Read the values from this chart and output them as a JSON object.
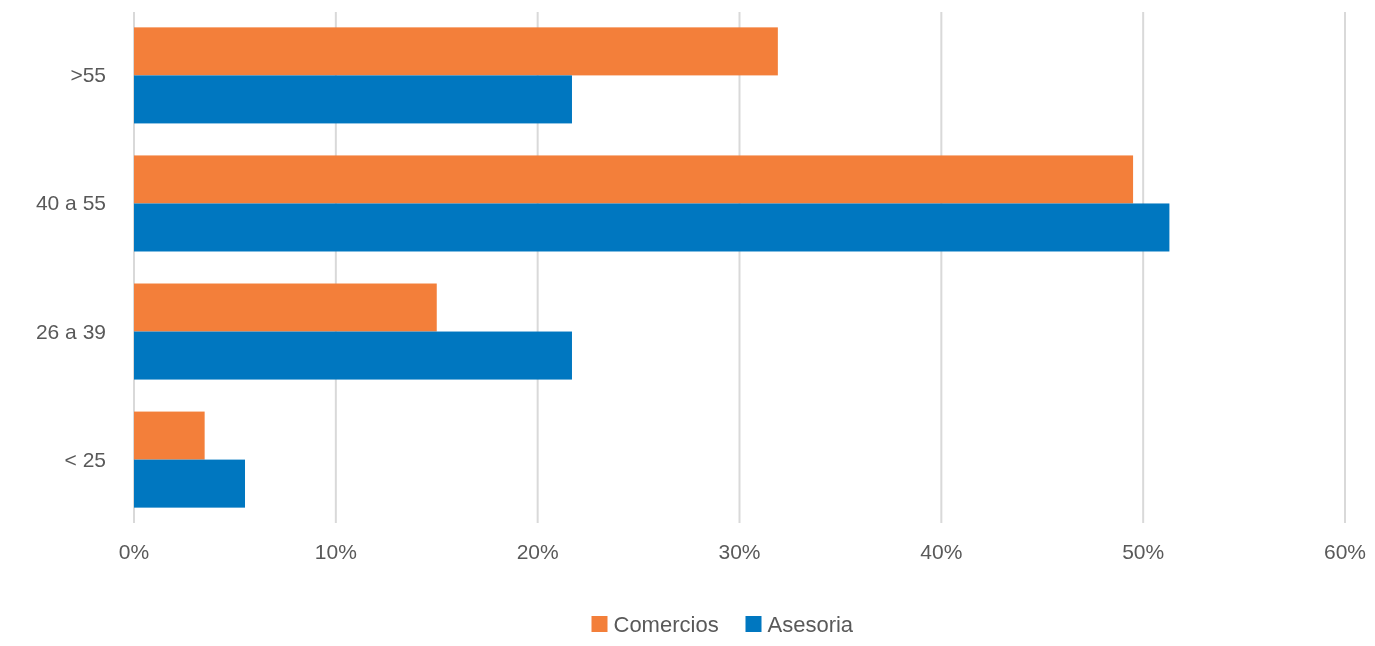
{
  "chart_data": {
    "type": "bar",
    "orientation": "horizontal",
    "categories": [
      ">55",
      "40 a 55",
      "26 a 39",
      "< 25"
    ],
    "series": [
      {
        "name": "Comercios",
        "color": "#f37f3a",
        "values": [
          31.9,
          49.5,
          15.0,
          3.5
        ]
      },
      {
        "name": "Asesoria",
        "color": "#0077c0",
        "values": [
          21.7,
          51.3,
          21.7,
          5.5
        ]
      }
    ],
    "xlim": [
      0,
      60
    ],
    "xticks": [
      {
        "value": 0,
        "label": "0%"
      },
      {
        "value": 10,
        "label": "10%"
      },
      {
        "value": 20,
        "label": "20%"
      },
      {
        "value": 30,
        "label": "30%"
      },
      {
        "value": 40,
        "label": "40%"
      },
      {
        "value": 50,
        "label": "50%"
      },
      {
        "value": 60,
        "label": "60%"
      }
    ],
    "grid": "x",
    "legend": "bottom"
  }
}
